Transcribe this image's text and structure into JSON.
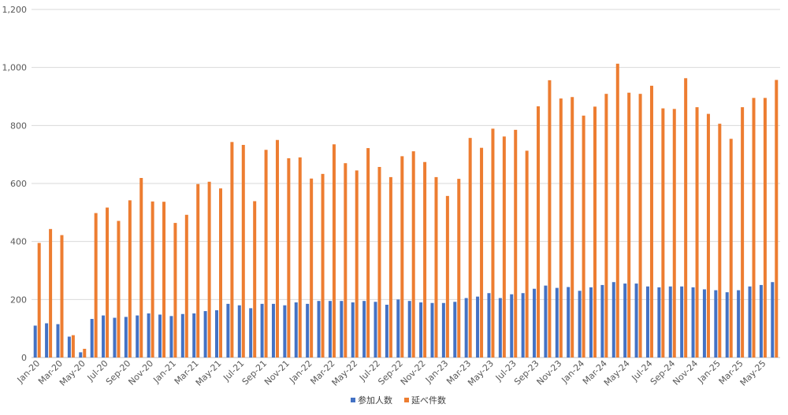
{
  "chart_data": {
    "type": "bar",
    "title": "",
    "xlabel": "",
    "ylabel": "",
    "ylim": [
      0,
      1200
    ],
    "yticks": [
      0,
      200,
      400,
      600,
      800,
      1000,
      1200
    ],
    "ytick_labels": [
      "0",
      "200",
      "400",
      "600",
      "800",
      "1,000",
      "1,200"
    ],
    "grid": true,
    "legend_position": "bottom",
    "categories": [
      "Jan-20",
      "Feb-20",
      "Mar-20",
      "Apr-20",
      "May-20",
      "Jun-20",
      "Jul-20",
      "Aug-20",
      "Sep-20",
      "Oct-20",
      "Nov-20",
      "Dec-20",
      "Jan-21",
      "Feb-21",
      "Mar-21",
      "Apr-21",
      "May-21",
      "Jun-21",
      "Jul-21",
      "Aug-21",
      "Sep-21",
      "Oct-21",
      "Nov-21",
      "Dec-21",
      "Jan-22",
      "Feb-22",
      "Mar-22",
      "Apr-22",
      "May-22",
      "Jun-22",
      "Jul-22",
      "Aug-22",
      "Sep-22",
      "Oct-22",
      "Nov-22",
      "Dec-22",
      "Jan-23",
      "Feb-23",
      "Mar-23",
      "Apr-23",
      "May-23",
      "Jun-23",
      "Jul-23",
      "Aug-23",
      "Sep-23",
      "Oct-23",
      "Nov-23",
      "Dec-23",
      "Jan-24",
      "Feb-24",
      "Mar-24",
      "Apr-24",
      "May-24",
      "Jun-24",
      "Jul-24",
      "Aug-24",
      "Sep-24",
      "Oct-24",
      "Nov-24",
      "Dec-24",
      "Jan-25",
      "Feb-25",
      "Mar-25",
      "Apr-25",
      "May-25",
      "Jun-25"
    ],
    "xtick_labels": [
      "Jan-20",
      "",
      "Mar-20",
      "",
      "May-20",
      "",
      "Jul-20",
      "",
      "Sep-20",
      "",
      "Nov-20",
      "",
      "Jan-21",
      "",
      "Mar-21",
      "",
      "May-21",
      "",
      "Jul-21",
      "",
      "Sep-21",
      "",
      "Nov-21",
      "",
      "Jan-22",
      "",
      "Mar-22",
      "",
      "May-22",
      "",
      "Jul-22",
      "",
      "Sep-22",
      "",
      "Nov-22",
      "",
      "Jan-23",
      "",
      "Mar-23",
      "",
      "May-23",
      "",
      "Jul-23",
      "",
      "Sep-23",
      "",
      "Nov-23",
      "",
      "Jan-24",
      "",
      "Mar-24",
      "",
      "May-24",
      "",
      "Jul-24",
      "",
      "Sep-24",
      "",
      "Nov-24",
      "",
      "Jan-25",
      "",
      "Mar-25",
      "",
      "May-25",
      ""
    ],
    "series": [
      {
        "name": "参加人数",
        "color": "#4472C4",
        "values": [
          110,
          118,
          115,
          72,
          18,
          133,
          145,
          137,
          140,
          145,
          152,
          148,
          143,
          150,
          152,
          160,
          163,
          185,
          180,
          170,
          185,
          185,
          180,
          190,
          185,
          195,
          195,
          195,
          190,
          195,
          192,
          182,
          200,
          195,
          190,
          188,
          188,
          192,
          205,
          210,
          222,
          205,
          218,
          222,
          237,
          248,
          240,
          243,
          230,
          242,
          250,
          260,
          255,
          255,
          245,
          242,
          245,
          245,
          242,
          235,
          232,
          225,
          232,
          245,
          250,
          260
        ]
      },
      {
        "name": "延べ件数",
        "color": "#ED7D31",
        "values": [
          395,
          443,
          422,
          77,
          30,
          498,
          517,
          471,
          542,
          619,
          538,
          537,
          464,
          492,
          598,
          606,
          583,
          743,
          733,
          539,
          716,
          750,
          687,
          690,
          617,
          633,
          735,
          670,
          645,
          722,
          657,
          622,
          694,
          711,
          674,
          622,
          557,
          616,
          757,
          723,
          789,
          762,
          785,
          713,
          866,
          956,
          893,
          898,
          834,
          865,
          909,
          1013,
          913,
          909,
          937,
          859,
          857,
          963,
          863,
          840,
          806,
          754,
          863,
          895,
          895,
          957
        ]
      }
    ]
  }
}
